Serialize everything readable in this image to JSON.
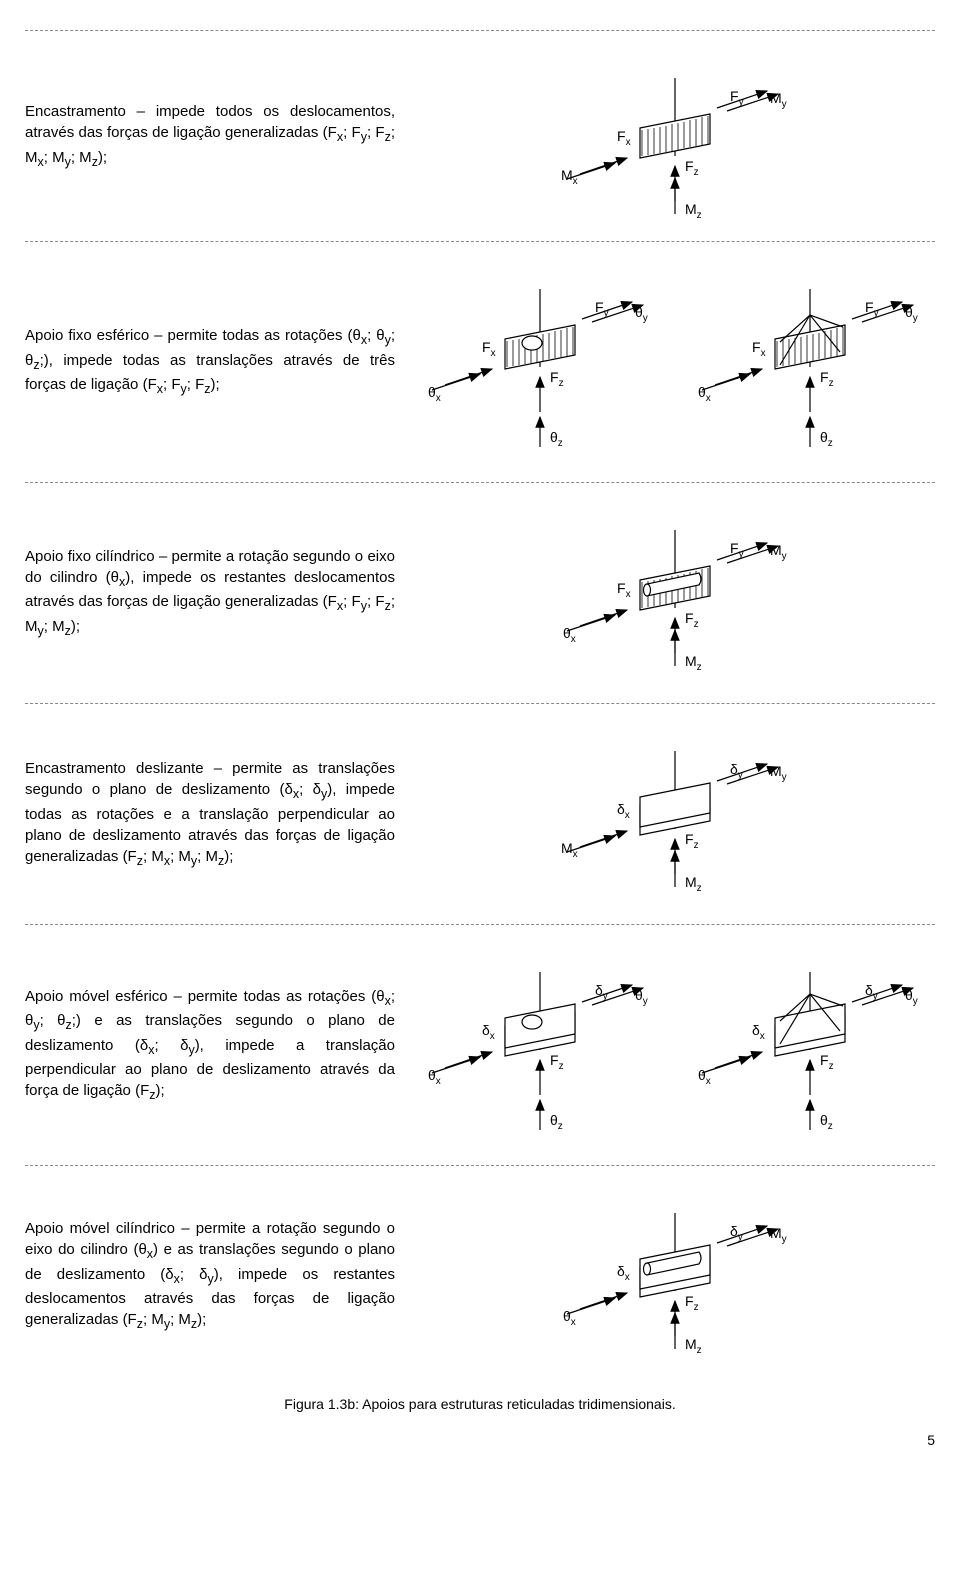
{
  "rows": {
    "r1": {
      "text": "Encastramento – impede todos os deslocamentos, através das forças de ligação generalizadas (F<sub>x</sub>; F<sub>y</sub>; F<sub>z</sub>; M<sub>x</sub>; M<sub>y</sub>; M<sub>z</sub>);"
    },
    "r2": {
      "text": "Apoio fixo esférico – permite todas as rotações (θ<sub>x</sub>; θ<sub>y</sub>; θ<sub>z</sub>;), impede todas as translações através de três forças de ligação (F<sub>x</sub>; F<sub>y</sub>; F<sub>z</sub>);"
    },
    "r3": {
      "text": "Apoio fixo cilíndrico – permite a rotação segundo o eixo do cilindro (θ<sub>x</sub>), impede os restantes deslocamentos através das forças de ligação generalizadas (F<sub>x</sub>; F<sub>y</sub>; F<sub>z</sub>; M<sub>y</sub>; M<sub>z</sub>);"
    },
    "r4": {
      "text": "Encastramento deslizante – permite as translações segundo o plano de deslizamento (δ<sub>x</sub>; δ<sub>y</sub>), impede todas as rotações e a translação perpendicular ao plano de deslizamento através das forças de ligação generalizadas (F<sub>z</sub>; M<sub>x</sub>; M<sub>y</sub>; M<sub>z</sub>);"
    },
    "r5": {
      "text": "Apoio móvel esférico – permite todas as rotações (θ<sub>x</sub>; θ<sub>y</sub>; θ<sub>z</sub>;) e as translações segundo o plano de deslizamento (δ<sub>x</sub>; δ<sub>y</sub>), impede a translação perpendicular ao plano de deslizamento através da força de ligação (F<sub>z</sub>);"
    },
    "r6": {
      "text": "Apoio móvel cilíndrico – permite a rotação segundo o eixo do cilindro (θ<sub>x</sub>) e as translações segundo o plano de deslizamento (δ<sub>x</sub>; δ<sub>y</sub>), impede os restantes deslocamentos através das forças de ligação generalizadas (F<sub>z</sub>; M<sub>y</sub>; M<sub>z</sub>);"
    }
  },
  "caption": "Figura 1.3b: Apoios para estruturas reticuladas tridimensionais.",
  "page": "5",
  "labels": {
    "Fx": "F",
    "Fxs": "x",
    "Fy": "F",
    "Fys": "y",
    "Fz": "F",
    "Fzs": "z",
    "Mx": "M",
    "Mxs": "x",
    "My": "M",
    "Mys": "y",
    "Mz": "M",
    "Mzs": "z",
    "thx": "θ",
    "thxs": "x",
    "thy": "θ",
    "thys": "y",
    "thz": "θ",
    "thzs": "z",
    "dx": "δ",
    "dxs": "x",
    "dy": "δ",
    "dys": "y"
  },
  "style": {
    "stroke": "#000",
    "fill": "#fff",
    "hatch_color": "#000",
    "arrow_color": "#000",
    "line_width": 1.2,
    "font_size": 14,
    "sub_font_size": 10
  }
}
